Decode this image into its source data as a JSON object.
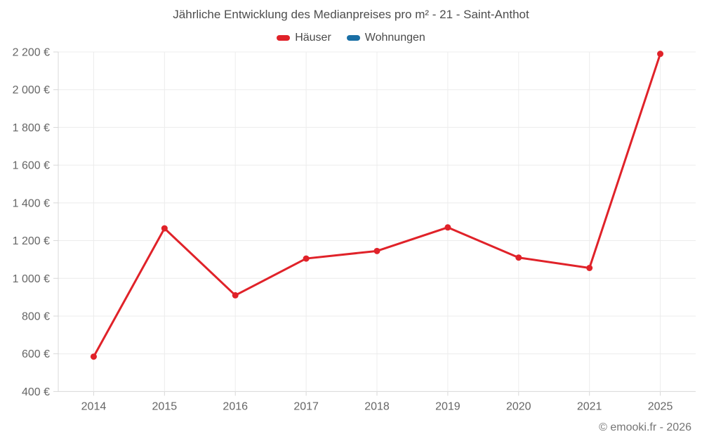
{
  "chart": {
    "footer": "© emooki.fr - 2026",
    "colors": {
      "hauser": "#e02229",
      "wohnungen": "#1a6fa5",
      "grid": "#ececec",
      "axis": "#d8d8d8"
    }
  },
  "chart_data": {
    "type": "line",
    "title": "Jährliche Entwicklung des Medianpreises pro m² - 21 - Saint-Anthot",
    "categories": [
      "2014",
      "2015",
      "2016",
      "2017",
      "2018",
      "2019",
      "2020",
      "2021",
      "2025"
    ],
    "series": [
      {
        "name": "Häuser",
        "color": "#e02229",
        "values": [
          585,
          1265,
          910,
          1105,
          1145,
          1270,
          1110,
          1055,
          2190
        ]
      },
      {
        "name": "Wohnungen",
        "color": "#1a6fa5",
        "values": []
      }
    ],
    "xlabel": "",
    "ylabel": "",
    "ylim": [
      400,
      2200
    ],
    "ytick_step": 200,
    "yticks": [
      "400 €",
      "600 €",
      "800 €",
      "1 000 €",
      "1 200 €",
      "1 400 €",
      "1 600 €",
      "1 800 €",
      "2 000 €",
      "2 200 €"
    ],
    "grid": true,
    "legend_position": "top"
  }
}
